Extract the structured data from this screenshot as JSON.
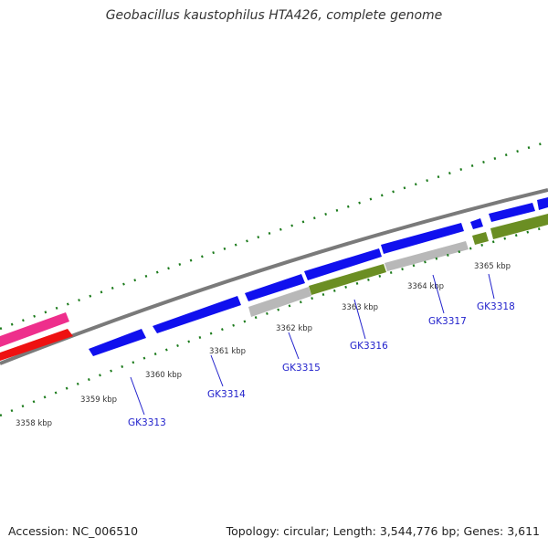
{
  "title": "Geobacillus kaustophilus HTA426, complete genome",
  "footer": {
    "accession": "Accession: NC_006510",
    "stats": "Topology: circular; Length: 3,544,776 bp; Genes: 3,611"
  },
  "colors": {
    "backbone": "#7a7a7a",
    "tick": "#1a7a1a",
    "forward_gene": "#1010ee",
    "grey_feature": "#b8b8b8",
    "olive_feature": "#6b8e23",
    "pink_feature": "#ee2f8c",
    "red_feature": "#ee1111",
    "gene_label": "#2222cc"
  },
  "scale": {
    "kbp_labels": [
      "3358 kbp",
      "3359 kbp",
      "3360 kbp",
      "3361 kbp",
      "3362 kbp",
      "3363 kbp",
      "3364 kbp",
      "3365 kbp"
    ]
  },
  "genes": [
    {
      "name": "GK3313"
    },
    {
      "name": "GK3314"
    },
    {
      "name": "GK3315"
    },
    {
      "name": "GK3316"
    },
    {
      "name": "GK3317"
    },
    {
      "name": "GK3318"
    }
  ]
}
